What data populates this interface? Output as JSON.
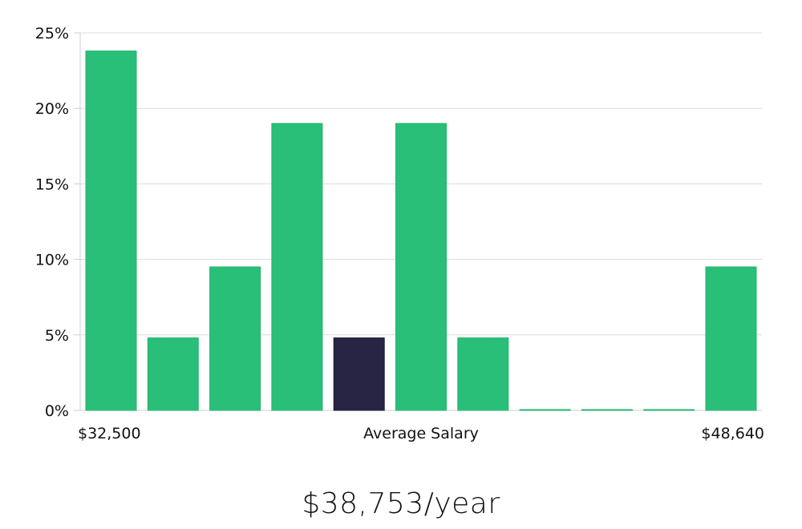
{
  "chart_data": {
    "type": "bar",
    "title": "",
    "xlabel": "Average Salary",
    "ylabel": "",
    "x_min_label": "$32,500",
    "x_max_label": "$48,640",
    "ylim": [
      0,
      25
    ],
    "y_ticks": [
      0,
      5,
      10,
      15,
      20,
      25
    ],
    "y_tick_labels": [
      "0%",
      "5%",
      "10%",
      "15%",
      "20%",
      "25%"
    ],
    "grid": true,
    "values": [
      23.8,
      4.8,
      9.5,
      19.0,
      4.8,
      19.0,
      4.8,
      0,
      0,
      0,
      9.5
    ],
    "highlight_index": 4,
    "colors": {
      "bar": "#29bf78",
      "bar_stroke": "#22b56d",
      "highlight": "#282544",
      "grid": "#dcdcdc",
      "axis": "#cfcfcf"
    }
  },
  "salary_text": "$38,753/year"
}
